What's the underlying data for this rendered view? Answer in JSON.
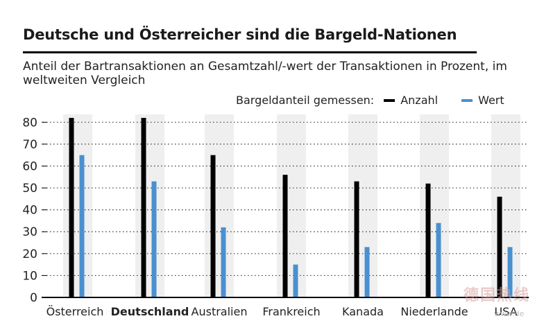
{
  "title": "Deutsche und Österreicher sind die Bargeld-Nationen",
  "subtitle": "Anteil der Bartransaktionen an Gesamtzahl/-wert der Transaktionen in Prozent, im weltweiten Vergleich",
  "legend": {
    "label": "Bargeldanteil gemessen:",
    "anzahl": "Anzahl",
    "wert": "Wert"
  },
  "watermark": {
    "text": "德国热线",
    "domain": "www.de"
  },
  "chart_data": {
    "type": "bar",
    "categories": [
      "Österreich",
      "Deutschland",
      "Australien",
      "Frankreich",
      "Kanada",
      "Niederlande",
      "USA"
    ],
    "highlight_category": "Deutschland",
    "series": [
      {
        "name": "Anzahl",
        "color": "#000000",
        "values": [
          82,
          82,
          65,
          56,
          53,
          52,
          46
        ]
      },
      {
        "name": "Wert",
        "color": "#4a90d0",
        "values": [
          65,
          53,
          32,
          15,
          23,
          34,
          23
        ]
      }
    ],
    "yticks": [
      0,
      10,
      20,
      30,
      40,
      50,
      60,
      70,
      80
    ],
    "ylim": [
      0,
      82
    ],
    "grid": true,
    "xlabel": "",
    "ylabel": ""
  }
}
